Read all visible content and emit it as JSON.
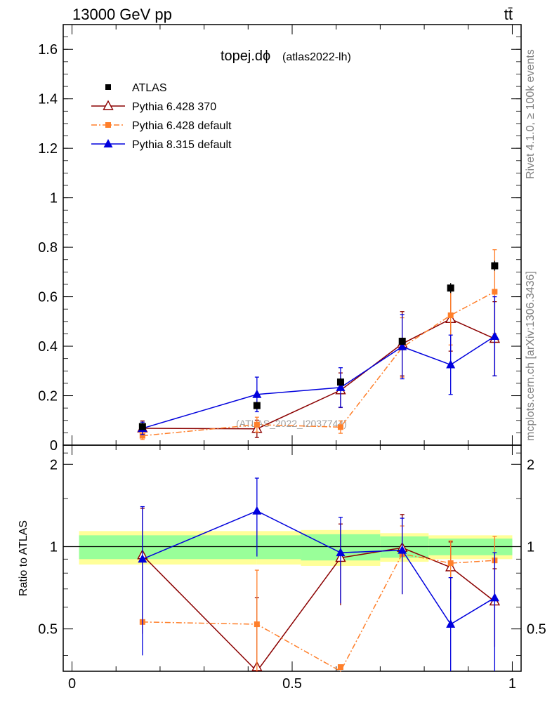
{
  "header": {
    "energy_label": "13000 GeV pp",
    "process_label": "tt̄"
  },
  "side_labels": {
    "rivet": "Rivet 4.1.0, ≥ 100k events",
    "mcplots": "mcplots.cern.ch [arXiv:1306.3436]"
  },
  "watermark": "(ATLAS_2022_I2037744)",
  "plot_title": {
    "main": "topej.dϕ",
    "sub": "(atlas2022-lh)"
  },
  "ratio_ylabel": "Ratio to ATLAS",
  "colors": {
    "atlas": "#000000",
    "p6_370": "#8b0000",
    "p6_default": "#ff7f2a",
    "p8_default": "#0000dd",
    "band_inner": "#99ff99",
    "band_outer": "#ffff99"
  },
  "chart_data": {
    "type": "line",
    "x": [
      0.16,
      0.42,
      0.61,
      0.75,
      0.86,
      0.96
    ],
    "xlim": [
      -0.02,
      1.02
    ],
    "main_ylim": [
      0,
      1.7
    ],
    "main_yticks": [
      0,
      0.2,
      0.4,
      0.6,
      0.8,
      1,
      1.2,
      1.4,
      1.6
    ],
    "main_ytick_labels": [
      "0",
      "0.2",
      "0.4",
      "0.6",
      "0.8",
      "1",
      "1.2",
      "1.4",
      "1.6"
    ],
    "ratio_ylim": [
      0.35,
      2.35
    ],
    "ratio_yticks": [
      0.5,
      1,
      2
    ],
    "ratio_ytick_labels": [
      "0.5",
      "1",
      "2"
    ],
    "xticks": [
      0,
      0.5,
      1
    ],
    "xtick_labels": [
      "0",
      "0.5",
      "1"
    ],
    "data": {
      "name": "ATLAS",
      "values": [
        0.075,
        0.16,
        0.255,
        0.42,
        0.635,
        0.725
      ],
      "errors": [
        0.01,
        0.015,
        0.015,
        0.015,
        0.02,
        0.02
      ]
    },
    "bins": [
      0.0,
      0.42,
      0.52,
      0.7,
      0.81,
      1.0
    ],
    "band_inner": [
      [
        0.9,
        1.1
      ],
      [
        0.9,
        1.1
      ],
      [
        0.89,
        1.11
      ],
      [
        0.91,
        1.09
      ],
      [
        0.93,
        1.07
      ],
      [
        0.93,
        1.07
      ]
    ],
    "band_outer": [
      [
        0.86,
        1.14
      ],
      [
        0.86,
        1.14
      ],
      [
        0.85,
        1.15
      ],
      [
        0.88,
        1.12
      ],
      [
        0.9,
        1.1
      ],
      [
        0.9,
        1.1
      ]
    ],
    "series": [
      {
        "name": "Pythia 6.428 370",
        "marker": "open-triangle",
        "dash": "",
        "values": [
          0.068,
          0.066,
          0.222,
          0.41,
          0.51,
          0.43
        ],
        "errors": [
          0.03,
          0.035,
          0.07,
          0.13,
          0.13,
          0.15
        ],
        "ratio": [
          0.93,
          0.35,
          0.91,
          0.99,
          0.84,
          0.63
        ],
        "ratio_errors": [
          0.45,
          0.3,
          0.3,
          0.32,
          0.2,
          0.2
        ]
      },
      {
        "name": "Pythia 6.428 default",
        "marker": "square",
        "dash": "8,3,2,3",
        "values": [
          0.038,
          0.083,
          0.073,
          0.395,
          0.525,
          0.62
        ],
        "errors": [
          0.015,
          0.03,
          0.025,
          0.12,
          0.12,
          0.17
        ],
        "ratio": [
          0.53,
          0.52,
          0.27,
          0.94,
          0.87,
          0.89
        ],
        "ratio_errors": [
          0.0,
          0.3,
          0.0,
          0.25,
          0.18,
          0.2
        ]
      },
      {
        "name": "Pythia 8.315 default",
        "marker": "filled-triangle",
        "dash": "",
        "values": [
          0.068,
          0.205,
          0.233,
          0.398,
          0.325,
          0.44
        ],
        "errors": [
          0.025,
          0.07,
          0.08,
          0.13,
          0.12,
          0.16
        ],
        "ratio": [
          0.9,
          1.35,
          0.95,
          0.97,
          0.52,
          0.65
        ],
        "ratio_errors": [
          0.5,
          0.43,
          0.33,
          0.3,
          0.25,
          0.3
        ]
      }
    ]
  }
}
